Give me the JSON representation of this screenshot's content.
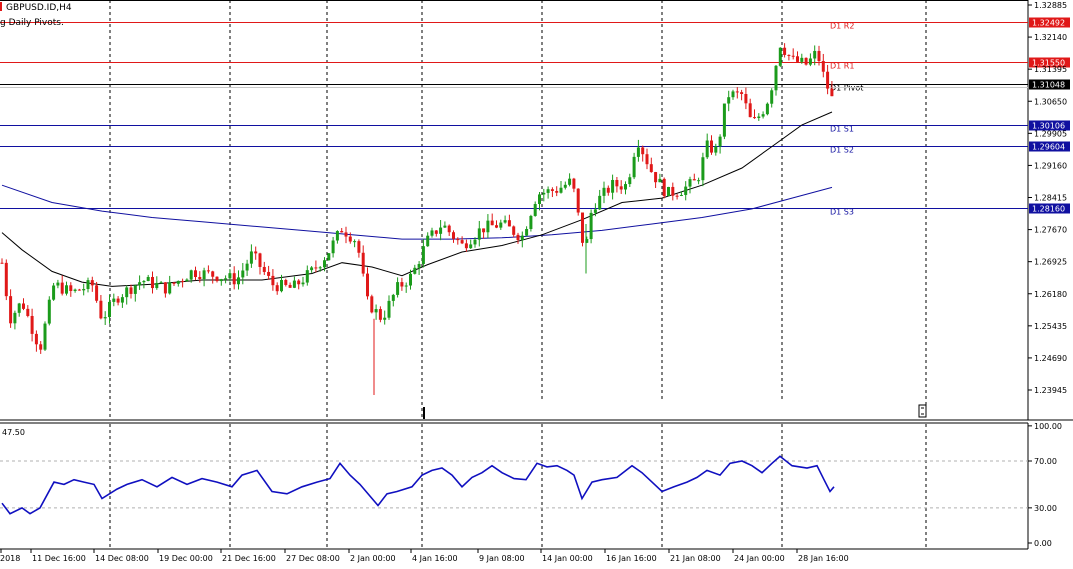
{
  "header": {
    "symbol_label": "GBPUSD.ID,H4",
    "indicator_label": "g Daily Pivots."
  },
  "colors": {
    "bull": "#1b9b1b",
    "bear": "#e01818",
    "resistance": "#e01818",
    "support": "#1010a0",
    "pivot": "#000000",
    "ma_fast": "#000000",
    "ma_slow": "#1010a0",
    "rsi": "#1010c0",
    "grid": "#000000"
  },
  "chart_data": {
    "type": "candlestick",
    "price_axis": {
      "ylim": [
        1.236,
        1.331
      ],
      "ticks": [
        "1.32885",
        "1.32140",
        "1.31395",
        "1.30650",
        "1.29905",
        "1.29160",
        "1.28415",
        "1.27670",
        "1.26925",
        "1.26180",
        "1.25435",
        "1.24690",
        "1.23945"
      ]
    },
    "pivot_levels": [
      {
        "name": "D1 R2",
        "value": "1.32492",
        "type": "resistance"
      },
      {
        "name": "D1 R1",
        "value": "1.31550",
        "type": "resistance"
      },
      {
        "name": "D1 Pivot",
        "value": "1.31048",
        "type": "pivot"
      },
      {
        "name": "D1 S1",
        "value": "1.30106",
        "type": "support"
      },
      {
        "name": "D1 S2",
        "value": "1.29604",
        "type": "support"
      },
      {
        "name": "D1 S3",
        "value": "1.28160",
        "type": "support"
      }
    ],
    "last_price": "1.31048",
    "x_labels": [
      "2018",
      "11 Dec 16:00",
      "14 Dec 08:00",
      "19 Dec 00:00",
      "21 Dec 16:00",
      "27 Dec 08:00",
      "2 Jan 00:00",
      "4 Jan 16:00",
      "9 Jan 08:00",
      "14 Jan 00:00",
      "16 Jan 16:00",
      "21 Jan 08:00",
      "24 Jan 00:00",
      "28 Jan 16:00"
    ],
    "anchors": [
      {
        "x": 0,
        "c": 1.269
      },
      {
        "x": 8,
        "c": 1.256
      },
      {
        "x": 20,
        "c": 1.26
      },
      {
        "x": 38,
        "c": 1.249
      },
      {
        "x": 52,
        "c": 1.264
      },
      {
        "x": 70,
        "c": 1.262
      },
      {
        "x": 90,
        "c": 1.264
      },
      {
        "x": 100,
        "c": 1.256
      },
      {
        "x": 115,
        "c": 1.261
      },
      {
        "x": 140,
        "c": 1.265
      },
      {
        "x": 165,
        "c": 1.263
      },
      {
        "x": 190,
        "c": 1.267
      },
      {
        "x": 215,
        "c": 1.266
      },
      {
        "x": 235,
        "c": 1.265
      },
      {
        "x": 250,
        "c": 1.271
      },
      {
        "x": 270,
        "c": 1.264
      },
      {
        "x": 290,
        "c": 1.263
      },
      {
        "x": 310,
        "c": 1.267
      },
      {
        "x": 325,
        "c": 1.271
      },
      {
        "x": 340,
        "c": 1.277
      },
      {
        "x": 355,
        "c": 1.274
      },
      {
        "x": 365,
        "c": 1.26
      },
      {
        "x": 380,
        "c": 1.256
      },
      {
        "x": 395,
        "c": 1.263
      },
      {
        "x": 410,
        "c": 1.266
      },
      {
        "x": 425,
        "c": 1.274
      },
      {
        "x": 440,
        "c": 1.278
      },
      {
        "x": 460,
        "c": 1.273
      },
      {
        "x": 480,
        "c": 1.277
      },
      {
        "x": 500,
        "c": 1.278
      },
      {
        "x": 520,
        "c": 1.275
      },
      {
        "x": 535,
        "c": 1.285
      },
      {
        "x": 555,
        "c": 1.286
      },
      {
        "x": 570,
        "c": 1.288
      },
      {
        "x": 583,
        "c": 1.271
      },
      {
        "x": 590,
        "c": 1.282
      },
      {
        "x": 610,
        "c": 1.287
      },
      {
        "x": 625,
        "c": 1.287
      },
      {
        "x": 635,
        "c": 1.298
      },
      {
        "x": 650,
        "c": 1.29
      },
      {
        "x": 665,
        "c": 1.285
      },
      {
        "x": 680,
        "c": 1.286
      },
      {
        "x": 695,
        "c": 1.288
      },
      {
        "x": 705,
        "c": 1.296
      },
      {
        "x": 715,
        "c": 1.295
      },
      {
        "x": 725,
        "c": 1.308
      },
      {
        "x": 740,
        "c": 1.308
      },
      {
        "x": 750,
        "c": 1.301
      },
      {
        "x": 760,
        "c": 1.304
      },
      {
        "x": 768,
        "c": 1.308
      },
      {
        "x": 778,
        "c": 1.32
      },
      {
        "x": 790,
        "c": 1.316
      },
      {
        "x": 805,
        "c": 1.315
      },
      {
        "x": 815,
        "c": 1.318
      },
      {
        "x": 822,
        "c": 1.312
      },
      {
        "x": 830,
        "c": 1.307
      }
    ],
    "ma_fast": [
      {
        "x": 0,
        "v": 1.276
      },
      {
        "x": 20,
        "v": 1.272
      },
      {
        "x": 50,
        "v": 1.267
      },
      {
        "x": 80,
        "v": 1.2645
      },
      {
        "x": 110,
        "v": 1.2635
      },
      {
        "x": 150,
        "v": 1.264
      },
      {
        "x": 200,
        "v": 1.265
      },
      {
        "x": 260,
        "v": 1.265
      },
      {
        "x": 310,
        "v": 1.2665
      },
      {
        "x": 340,
        "v": 1.269
      },
      {
        "x": 370,
        "v": 1.268
      },
      {
        "x": 400,
        "v": 1.266
      },
      {
        "x": 425,
        "v": 1.2685
      },
      {
        "x": 460,
        "v": 1.2715
      },
      {
        "x": 500,
        "v": 1.273
      },
      {
        "x": 540,
        "v": 1.2755
      },
      {
        "x": 580,
        "v": 1.279
      },
      {
        "x": 620,
        "v": 1.283
      },
      {
        "x": 660,
        "v": 1.284
      },
      {
        "x": 700,
        "v": 1.287
      },
      {
        "x": 740,
        "v": 1.291
      },
      {
        "x": 770,
        "v": 1.296
      },
      {
        "x": 800,
        "v": 1.301
      },
      {
        "x": 830,
        "v": 1.304
      }
    ],
    "ma_slow": [
      {
        "x": 0,
        "v": 1.287
      },
      {
        "x": 50,
        "v": 1.283
      },
      {
        "x": 100,
        "v": 1.281
      },
      {
        "x": 150,
        "v": 1.2795
      },
      {
        "x": 200,
        "v": 1.2785
      },
      {
        "x": 250,
        "v": 1.2775
      },
      {
        "x": 300,
        "v": 1.2765
      },
      {
        "x": 350,
        "v": 1.2755
      },
      {
        "x": 400,
        "v": 1.2745
      },
      {
        "x": 450,
        "v": 1.2745
      },
      {
        "x": 500,
        "v": 1.2748
      },
      {
        "x": 550,
        "v": 1.2755
      },
      {
        "x": 600,
        "v": 1.2765
      },
      {
        "x": 650,
        "v": 1.278
      },
      {
        "x": 700,
        "v": 1.2795
      },
      {
        "x": 750,
        "v": 1.2815
      },
      {
        "x": 790,
        "v": 1.284
      },
      {
        "x": 830,
        "v": 1.2865
      }
    ],
    "rsi": {
      "label": "47.50",
      "ylim": [
        -5,
        105
      ],
      "ticks": [
        "100.00",
        "70.00",
        "30.00",
        "0.00"
      ],
      "levels": [
        70,
        30
      ],
      "points": [
        {
          "x": 0,
          "v": 34
        },
        {
          "x": 8,
          "v": 25
        },
        {
          "x": 20,
          "v": 30
        },
        {
          "x": 28,
          "v": 25
        },
        {
          "x": 38,
          "v": 30
        },
        {
          "x": 52,
          "v": 52
        },
        {
          "x": 62,
          "v": 50
        },
        {
          "x": 72,
          "v": 54
        },
        {
          "x": 82,
          "v": 52
        },
        {
          "x": 92,
          "v": 50
        },
        {
          "x": 100,
          "v": 38
        },
        {
          "x": 115,
          "v": 46
        },
        {
          "x": 125,
          "v": 50
        },
        {
          "x": 140,
          "v": 54
        },
        {
          "x": 155,
          "v": 48
        },
        {
          "x": 170,
          "v": 56
        },
        {
          "x": 185,
          "v": 50
        },
        {
          "x": 200,
          "v": 55
        },
        {
          "x": 215,
          "v": 52
        },
        {
          "x": 230,
          "v": 48
        },
        {
          "x": 240,
          "v": 58
        },
        {
          "x": 255,
          "v": 62
        },
        {
          "x": 270,
          "v": 44
        },
        {
          "x": 285,
          "v": 42
        },
        {
          "x": 300,
          "v": 48
        },
        {
          "x": 315,
          "v": 52
        },
        {
          "x": 328,
          "v": 55
        },
        {
          "x": 338,
          "v": 68
        },
        {
          "x": 348,
          "v": 58
        },
        {
          "x": 358,
          "v": 50
        },
        {
          "x": 368,
          "v": 40
        },
        {
          "x": 376,
          "v": 32
        },
        {
          "x": 385,
          "v": 42
        },
        {
          "x": 395,
          "v": 44
        },
        {
          "x": 410,
          "v": 48
        },
        {
          "x": 420,
          "v": 58
        },
        {
          "x": 430,
          "v": 62
        },
        {
          "x": 440,
          "v": 64
        },
        {
          "x": 450,
          "v": 58
        },
        {
          "x": 460,
          "v": 48
        },
        {
          "x": 470,
          "v": 56
        },
        {
          "x": 480,
          "v": 60
        },
        {
          "x": 490,
          "v": 66
        },
        {
          "x": 500,
          "v": 60
        },
        {
          "x": 512,
          "v": 55
        },
        {
          "x": 524,
          "v": 54
        },
        {
          "x": 535,
          "v": 68
        },
        {
          "x": 545,
          "v": 65
        },
        {
          "x": 555,
          "v": 66
        },
        {
          "x": 565,
          "v": 62
        },
        {
          "x": 572,
          "v": 58
        },
        {
          "x": 580,
          "v": 38
        },
        {
          "x": 590,
          "v": 52
        },
        {
          "x": 600,
          "v": 54
        },
        {
          "x": 615,
          "v": 56
        },
        {
          "x": 630,
          "v": 66
        },
        {
          "x": 640,
          "v": 60
        },
        {
          "x": 650,
          "v": 52
        },
        {
          "x": 660,
          "v": 44
        },
        {
          "x": 672,
          "v": 48
        },
        {
          "x": 685,
          "v": 52
        },
        {
          "x": 695,
          "v": 56
        },
        {
          "x": 705,
          "v": 62
        },
        {
          "x": 718,
          "v": 58
        },
        {
          "x": 728,
          "v": 68
        },
        {
          "x": 740,
          "v": 70
        },
        {
          "x": 750,
          "v": 66
        },
        {
          "x": 760,
          "v": 60
        },
        {
          "x": 770,
          "v": 68
        },
        {
          "x": 778,
          "v": 74
        },
        {
          "x": 790,
          "v": 66
        },
        {
          "x": 805,
          "v": 64
        },
        {
          "x": 815,
          "v": 66
        },
        {
          "x": 822,
          "v": 54
        },
        {
          "x": 828,
          "v": 44
        },
        {
          "x": 832,
          "v": 48
        }
      ]
    }
  }
}
